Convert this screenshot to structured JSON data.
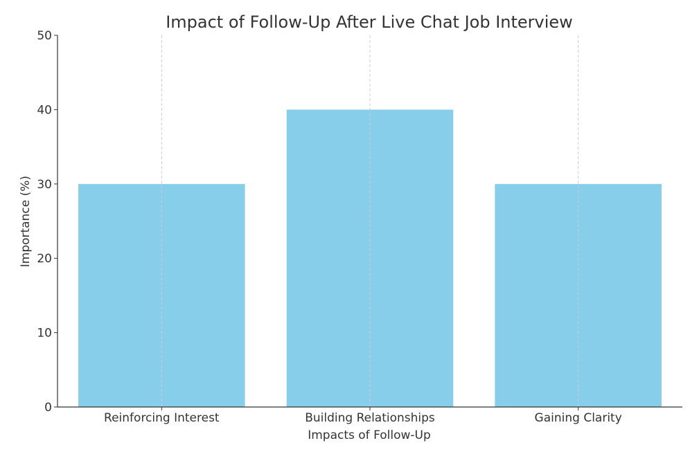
{
  "chart_data": {
    "type": "bar",
    "title": "Impact of Follow-Up After Live Chat Job Interview",
    "xlabel": "Impacts of Follow-Up",
    "ylabel": "Importance (%)",
    "categories": [
      "Reinforcing Interest",
      "Building Relationships",
      "Gaining Clarity"
    ],
    "values": [
      30,
      40,
      30
    ],
    "ylim": [
      0,
      50
    ],
    "yticks": [
      0,
      10,
      20,
      30,
      40,
      50
    ],
    "grid": "vertical dashed",
    "colors": {
      "bar": "#87CEEB",
      "axis": "#333333",
      "grid": "#cccccc",
      "text": "#333333"
    }
  }
}
